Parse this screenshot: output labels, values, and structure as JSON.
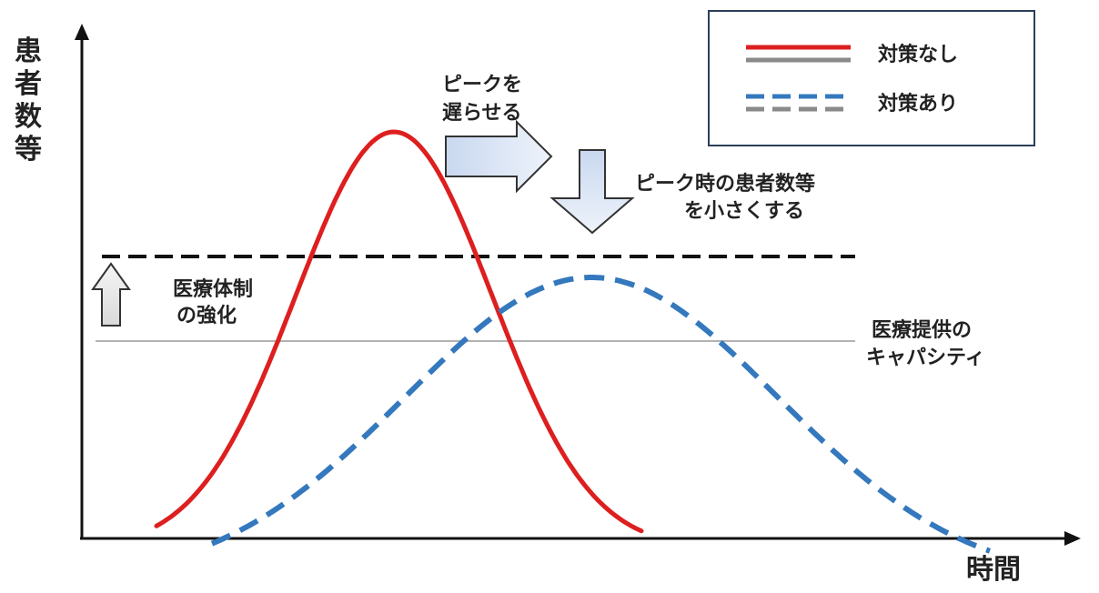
{
  "axes": {
    "y_label_chars": [
      "患",
      "者",
      "数",
      "等"
    ],
    "x_label": "時間"
  },
  "annotations": {
    "delay_peak": [
      "ピークを",
      "遅らせる"
    ],
    "reduce_peak": [
      "ピーク時の患者数等",
      "を小さくする"
    ],
    "strengthen_capacity": [
      "医療体制",
      "の強化"
    ],
    "capacity_label": [
      "医療提供の",
      "キャパシティ"
    ]
  },
  "legend": {
    "no_measures": "対策なし",
    "with_measures": "対策あり"
  },
  "colors": {
    "no_measures": "#dd1f1f",
    "with_measures": "#3478bd",
    "legend_grey": "#8a8a8a",
    "capacity_line": "#9a9a9a",
    "raised_capacity_line": "#111111",
    "arrow_fill": "#dfe8f5",
    "arrow_stroke": "#333333"
  }
}
